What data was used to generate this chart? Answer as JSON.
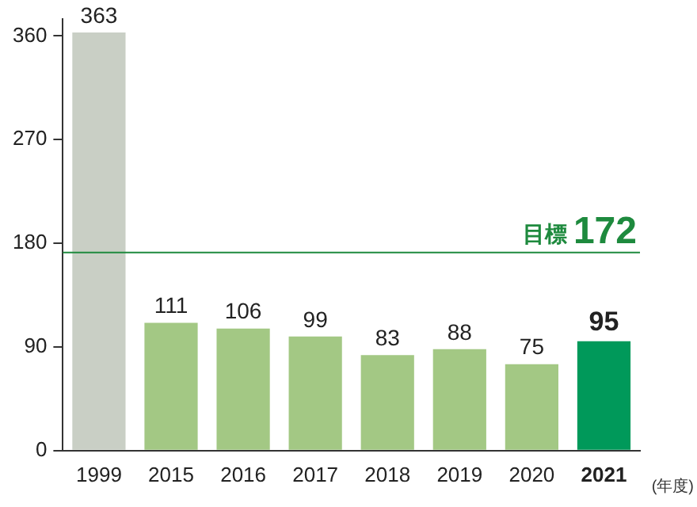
{
  "chart_data": {
    "type": "bar",
    "categories": [
      "1999",
      "2015",
      "2016",
      "2017",
      "2018",
      "2019",
      "2020",
      "2021"
    ],
    "values": [
      363,
      111,
      106,
      99,
      83,
      88,
      75,
      95
    ],
    "colors": [
      "#c9cfc5",
      "#a3c884",
      "#a3c884",
      "#a3c884",
      "#a3c884",
      "#a3c884",
      "#a3c884",
      "#00995a"
    ],
    "ylim": [
      0,
      375
    ],
    "yticks": [
      0,
      90,
      180,
      270,
      360
    ],
    "grid": false,
    "legend": false,
    "data_labels": true,
    "xlabel": "(年度)",
    "ref_lines": [
      {
        "axis": "y",
        "value": 172,
        "label": "目標 172",
        "color": "#1e8a3e",
        "line_style": "solid"
      }
    ]
  }
}
